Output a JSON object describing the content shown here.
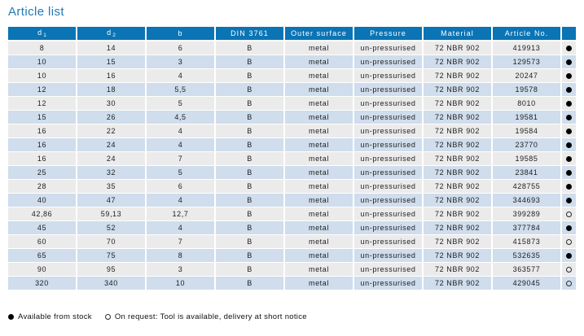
{
  "page": {
    "title": "Article list"
  },
  "colors": {
    "title_blue": "#2279b6",
    "header_bg": "#0b74b4",
    "header_text": "#ffffff",
    "row_gray": "#ebebeb",
    "row_blue": "#cfddec",
    "body_text": "#1d1d1d",
    "dot": "#000000"
  },
  "table": {
    "columns": [
      {
        "key": "d1",
        "label": "d",
        "subscript": "1"
      },
      {
        "key": "d2",
        "label": "d",
        "subscript": "2"
      },
      {
        "key": "b",
        "label": "b",
        "subscript": ""
      },
      {
        "key": "din",
        "label": "DIN 3761",
        "subscript": ""
      },
      {
        "key": "outer_surface",
        "label": "Outer surface",
        "subscript": ""
      },
      {
        "key": "pressure",
        "label": "Pressure",
        "subscript": ""
      },
      {
        "key": "material",
        "label": "Material",
        "subscript": ""
      },
      {
        "key": "article_no",
        "label": "Article No.",
        "subscript": ""
      },
      {
        "key": "stock",
        "label": "",
        "subscript": ""
      }
    ],
    "rows": [
      {
        "d1": "8",
        "d2": "14",
        "b": "6",
        "din": "B",
        "outer_surface": "metal",
        "pressure": "un-pressurised",
        "material": "72 NBR 902",
        "article_no": "419913",
        "stock": "available"
      },
      {
        "d1": "10",
        "d2": "15",
        "b": "3",
        "din": "B",
        "outer_surface": "metal",
        "pressure": "un-pressurised",
        "material": "72 NBR 902",
        "article_no": "129573",
        "stock": "available"
      },
      {
        "d1": "10",
        "d2": "16",
        "b": "4",
        "din": "B",
        "outer_surface": "metal",
        "pressure": "un-pressurised",
        "material": "72 NBR 902",
        "article_no": "20247",
        "stock": "available"
      },
      {
        "d1": "12",
        "d2": "18",
        "b": "5,5",
        "din": "B",
        "outer_surface": "metal",
        "pressure": "un-pressurised",
        "material": "72 NBR 902",
        "article_no": "19578",
        "stock": "available"
      },
      {
        "d1": "12",
        "d2": "30",
        "b": "5",
        "din": "B",
        "outer_surface": "metal",
        "pressure": "un-pressurised",
        "material": "72 NBR 902",
        "article_no": "8010",
        "stock": "available"
      },
      {
        "d1": "15",
        "d2": "26",
        "b": "4,5",
        "din": "B",
        "outer_surface": "metal",
        "pressure": "un-pressurised",
        "material": "72 NBR 902",
        "article_no": "19581",
        "stock": "available"
      },
      {
        "d1": "16",
        "d2": "22",
        "b": "4",
        "din": "B",
        "outer_surface": "metal",
        "pressure": "un-pressurised",
        "material": "72 NBR 902",
        "article_no": "19584",
        "stock": "available"
      },
      {
        "d1": "16",
        "d2": "24",
        "b": "4",
        "din": "B",
        "outer_surface": "metal",
        "pressure": "un-pressurised",
        "material": "72 NBR 902",
        "article_no": "23770",
        "stock": "available"
      },
      {
        "d1": "16",
        "d2": "24",
        "b": "7",
        "din": "B",
        "outer_surface": "metal",
        "pressure": "un-pressurised",
        "material": "72 NBR 902",
        "article_no": "19585",
        "stock": "available"
      },
      {
        "d1": "25",
        "d2": "32",
        "b": "5",
        "din": "B",
        "outer_surface": "metal",
        "pressure": "un-pressurised",
        "material": "72 NBR 902",
        "article_no": "23841",
        "stock": "available"
      },
      {
        "d1": "28",
        "d2": "35",
        "b": "6",
        "din": "B",
        "outer_surface": "metal",
        "pressure": "un-pressurised",
        "material": "72 NBR 902",
        "article_no": "428755",
        "stock": "available"
      },
      {
        "d1": "40",
        "d2": "47",
        "b": "4",
        "din": "B",
        "outer_surface": "metal",
        "pressure": "un-pressurised",
        "material": "72 NBR 902",
        "article_no": "344693",
        "stock": "available"
      },
      {
        "d1": "42,86",
        "d2": "59,13",
        "b": "12,7",
        "din": "B",
        "outer_surface": "metal",
        "pressure": "un-pressurised",
        "material": "72 NBR 902",
        "article_no": "399289",
        "stock": "on_request"
      },
      {
        "d1": "45",
        "d2": "52",
        "b": "4",
        "din": "B",
        "outer_surface": "metal",
        "pressure": "un-pressurised",
        "material": "72 NBR 902",
        "article_no": "377784",
        "stock": "available"
      },
      {
        "d1": "60",
        "d2": "70",
        "b": "7",
        "din": "B",
        "outer_surface": "metal",
        "pressure": "un-pressurised",
        "material": "72 NBR 902",
        "article_no": "415873",
        "stock": "on_request"
      },
      {
        "d1": "65",
        "d2": "75",
        "b": "8",
        "din": "B",
        "outer_surface": "metal",
        "pressure": "un-pressurised",
        "material": "72 NBR 902",
        "article_no": "532635",
        "stock": "available"
      },
      {
        "d1": "90",
        "d2": "95",
        "b": "3",
        "din": "B",
        "outer_surface": "metal",
        "pressure": "un-pressurised",
        "material": "72 NBR 902",
        "article_no": "363577",
        "stock": "on_request"
      },
      {
        "d1": "320",
        "d2": "340",
        "b": "10",
        "din": "B",
        "outer_surface": "metal",
        "pressure": "un-pressurised",
        "material": "72 NBR 902",
        "article_no": "429045",
        "stock": "on_request"
      }
    ]
  },
  "legend": {
    "available_text": "Available from stock",
    "on_request_text": "On request: Tool is available, delivery at short notice"
  }
}
